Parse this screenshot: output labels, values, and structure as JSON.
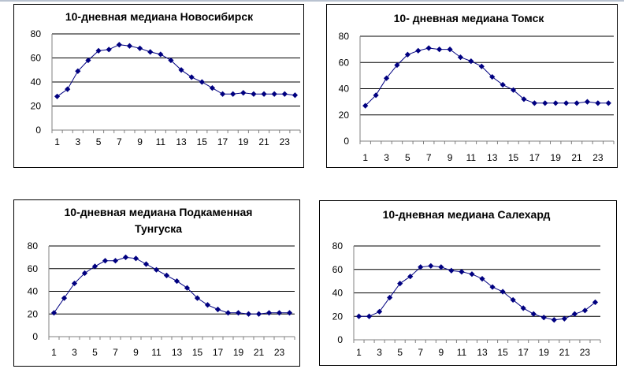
{
  "chart_data": [
    {
      "type": "line",
      "title": "10-дневная медиана Новосибирск",
      "xlabel": "",
      "ylabel": "",
      "ylim": [
        0,
        80
      ],
      "yticks": [
        0,
        20,
        40,
        60,
        80
      ],
      "xticks": [
        1,
        3,
        5,
        7,
        9,
        11,
        13,
        15,
        17,
        19,
        21,
        23
      ],
      "x": [
        1,
        2,
        3,
        4,
        5,
        6,
        7,
        8,
        9,
        10,
        11,
        12,
        13,
        14,
        15,
        16,
        17,
        18,
        19,
        20,
        21,
        22,
        23,
        24
      ],
      "series": [
        {
          "values": [
            28,
            34,
            49,
            58,
            66,
            67,
            71,
            70,
            68,
            65,
            63,
            58,
            50,
            44,
            40,
            35,
            30,
            30,
            31,
            30,
            30,
            30,
            30,
            29
          ]
        }
      ],
      "grid": true,
      "color": "#000080"
    },
    {
      "type": "line",
      "title": "10- дневная медиана Томск",
      "xlabel": "",
      "ylabel": "",
      "ylim": [
        0,
        80
      ],
      "yticks": [
        0,
        20,
        40,
        60,
        80
      ],
      "xticks": [
        1,
        3,
        5,
        7,
        9,
        11,
        13,
        15,
        17,
        19,
        21,
        23
      ],
      "x": [
        1,
        2,
        3,
        4,
        5,
        6,
        7,
        8,
        9,
        10,
        11,
        12,
        13,
        14,
        15,
        16,
        17,
        18,
        19,
        20,
        21,
        22,
        23,
        24
      ],
      "series": [
        {
          "values": [
            27,
            35,
            48,
            58,
            66,
            69,
            71,
            70,
            70,
            64,
            61,
            57,
            49,
            43,
            39,
            32,
            29,
            29,
            29,
            29,
            29,
            30,
            29,
            29
          ]
        }
      ],
      "grid": true,
      "color": "#000080"
    },
    {
      "type": "line",
      "title": "10-дневная медиана Подкаменная Тунгуска",
      "xlabel": "",
      "ylabel": "",
      "ylim": [
        0,
        80
      ],
      "yticks": [
        0,
        20,
        40,
        60,
        80
      ],
      "xticks": [
        1,
        3,
        5,
        7,
        9,
        11,
        13,
        15,
        17,
        19,
        21,
        23
      ],
      "x": [
        1,
        2,
        3,
        4,
        5,
        6,
        7,
        8,
        9,
        10,
        11,
        12,
        13,
        14,
        15,
        16,
        17,
        18,
        19,
        20,
        21,
        22,
        23,
        24
      ],
      "series": [
        {
          "values": [
            21,
            34,
            47,
            56,
            62,
            67,
            67,
            70,
            69,
            64,
            59,
            54,
            49,
            43,
            34,
            28,
            24,
            21,
            21,
            20,
            20,
            21,
            21,
            21
          ]
        }
      ],
      "grid": true,
      "color": "#000080"
    },
    {
      "type": "line",
      "title": "10-дневная медиана Салехард",
      "xlabel": "",
      "ylabel": "",
      "ylim": [
        0,
        80
      ],
      "yticks": [
        0,
        20,
        40,
        60,
        80
      ],
      "xticks": [
        1,
        3,
        5,
        7,
        9,
        11,
        13,
        15,
        17,
        19,
        21,
        23
      ],
      "x": [
        1,
        2,
        3,
        4,
        5,
        6,
        7,
        8,
        9,
        10,
        11,
        12,
        13,
        14,
        15,
        16,
        17,
        18,
        19,
        20,
        21,
        22,
        23,
        24
      ],
      "series": [
        {
          "values": [
            20,
            20,
            24,
            36,
            48,
            54,
            62,
            63,
            62,
            59,
            58,
            56,
            52,
            45,
            41,
            34,
            27,
            22,
            19,
            17,
            18,
            22,
            25,
            32
          ]
        }
      ],
      "grid": true,
      "color": "#000080"
    }
  ]
}
